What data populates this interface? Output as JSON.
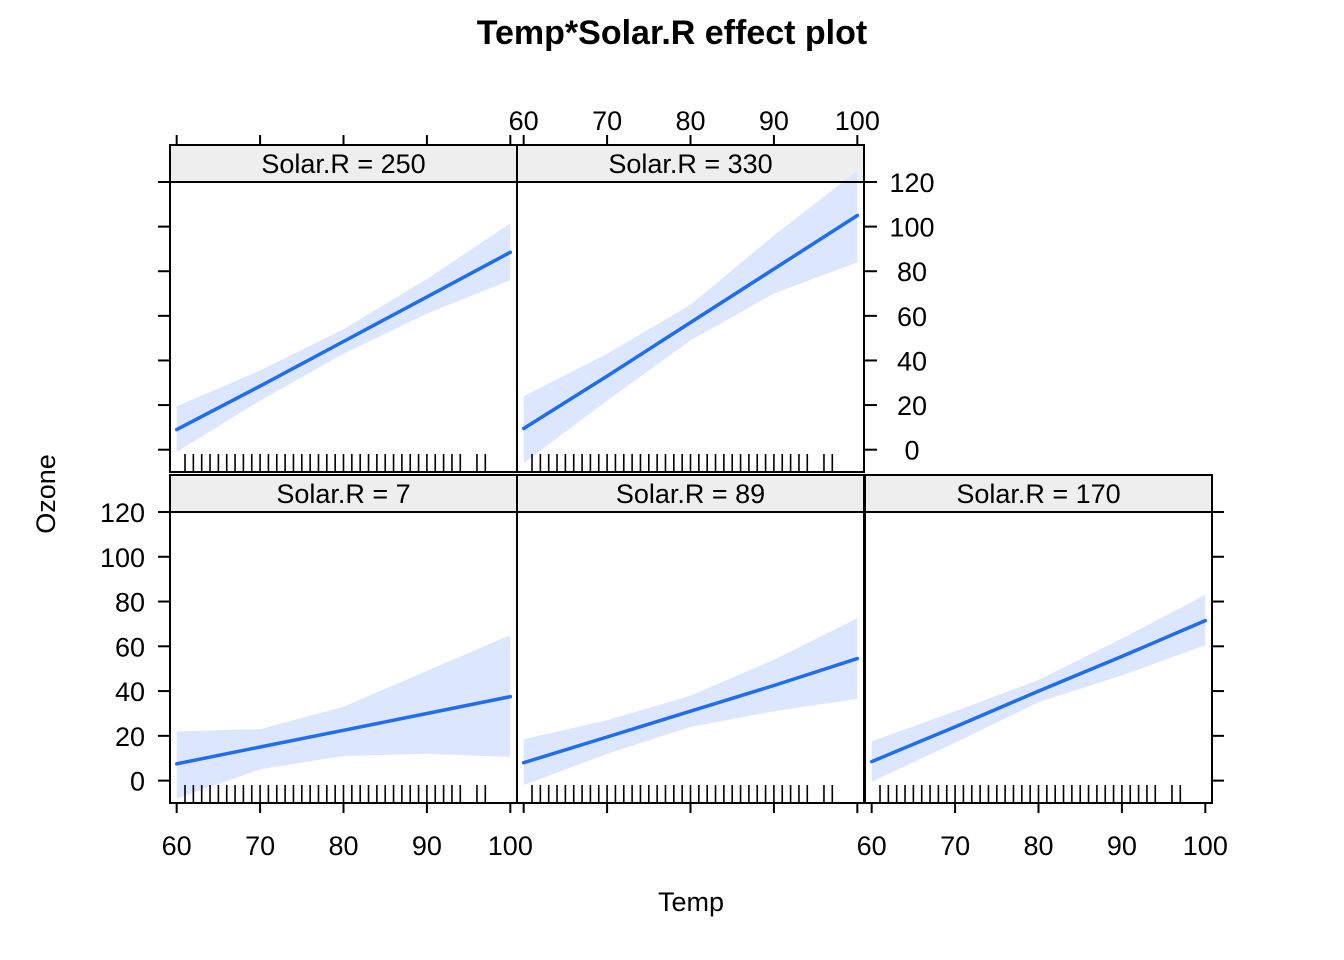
{
  "chart_data": {
    "type": "line",
    "title": "Temp*Solar.R effect plot",
    "xlabel": "Temp",
    "ylabel": "Ozone",
    "xlim": [
      59.2,
      100.8
    ],
    "ylim": [
      -10,
      120
    ],
    "x_ticks": [
      60,
      70,
      80,
      90,
      100
    ],
    "y_ticks": [
      0,
      20,
      40,
      60,
      80,
      100,
      120
    ],
    "x_tick_labels": [
      "60",
      "70",
      "80",
      "90",
      "100"
    ],
    "y_tick_labels": [
      "0",
      "20",
      "40",
      "60",
      "80",
      "100",
      "120"
    ],
    "band_color": "#dce6ff",
    "line_color": "#1f6df0",
    "strip_color": "#eeeeee",
    "rug": [
      57,
      58,
      59,
      61,
      62,
      63,
      64,
      65,
      66,
      67,
      68,
      69,
      70,
      71,
      72,
      73,
      74,
      75,
      76,
      77,
      78,
      79,
      80,
      81,
      82,
      83,
      84,
      85,
      86,
      87,
      88,
      89,
      90,
      91,
      92,
      93,
      94,
      96,
      97
    ],
    "panels": [
      {
        "label": "Solar.R = 7",
        "x": [
          60,
          70,
          80,
          90,
          100
        ],
        "fit": [
          7.5,
          15,
          22.5,
          30,
          37.5
        ],
        "lower": [
          -8,
          5,
          11,
          12,
          10.5
        ],
        "upper": [
          22,
          23,
          33,
          49,
          65
        ]
      },
      {
        "label": "Solar.R = 89",
        "x": [
          60,
          70,
          80,
          90,
          100
        ],
        "fit": [
          8,
          19.5,
          31,
          42.5,
          54.5
        ],
        "lower": [
          -2,
          12,
          24,
          31,
          36.5
        ],
        "upper": [
          18.5,
          27,
          38,
          54,
          72.5
        ]
      },
      {
        "label": "Solar.R = 170",
        "x": [
          60,
          70,
          80,
          90,
          100
        ],
        "fit": [
          8.5,
          24,
          40,
          55.5,
          71.5
        ],
        "lower": [
          -0.5,
          17,
          35,
          47,
          60.5
        ],
        "upper": [
          17.5,
          31,
          45,
          63.5,
          83
        ]
      },
      {
        "label": "Solar.R = 250",
        "x": [
          60,
          70,
          80,
          90,
          100
        ],
        "fit": [
          9,
          28.5,
          48.5,
          68.5,
          88.5
        ],
        "lower": [
          -1,
          22,
          43,
          61,
          76
        ],
        "upper": [
          19.5,
          35.5,
          54,
          76.5,
          101.5
        ]
      },
      {
        "label": "Solar.R = 330",
        "x": [
          60,
          70,
          80,
          90,
          100
        ],
        "fit": [
          9.5,
          33,
          57,
          81,
          105
        ],
        "lower": [
          -6,
          22,
          49,
          70,
          84
        ],
        "upper": [
          24,
          43,
          65,
          96,
          125
        ]
      }
    ]
  }
}
